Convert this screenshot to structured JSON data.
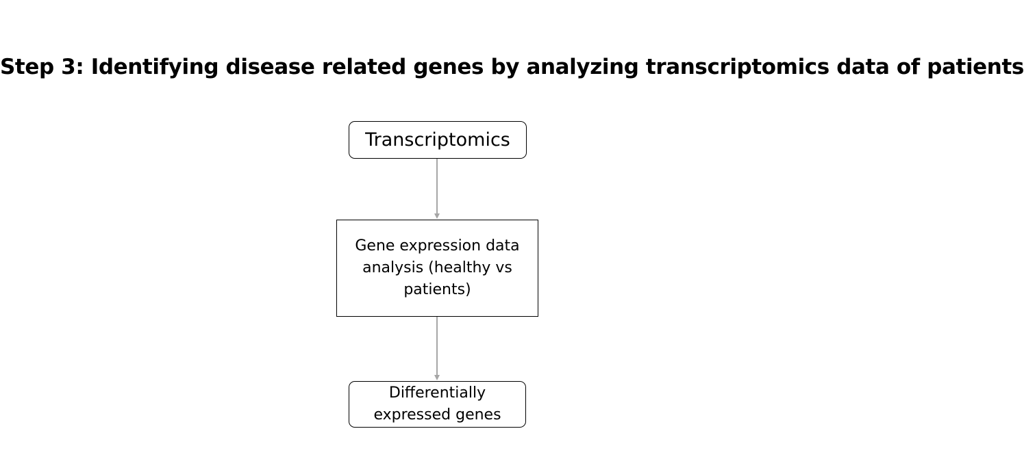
{
  "title": "Step 3: Identifying disease related genes by analyzing transcriptomics data of patients",
  "nodes": {
    "transcriptomics": "Transcriptomics",
    "analysis": "Gene expression data analysis (healthy vs patients)",
    "deg": "Differentially expressed genes"
  },
  "edges": [
    {
      "from": "Transcriptomics",
      "to": "Gene expression data analysis (healthy vs patients)"
    },
    {
      "from": "Gene expression data analysis (healthy vs patients)",
      "to": "Differentially expressed genes"
    }
  ],
  "colors": {
    "connector": "#a6a6a6",
    "border": "#000000",
    "text": "#000000",
    "background": "#ffffff"
  }
}
